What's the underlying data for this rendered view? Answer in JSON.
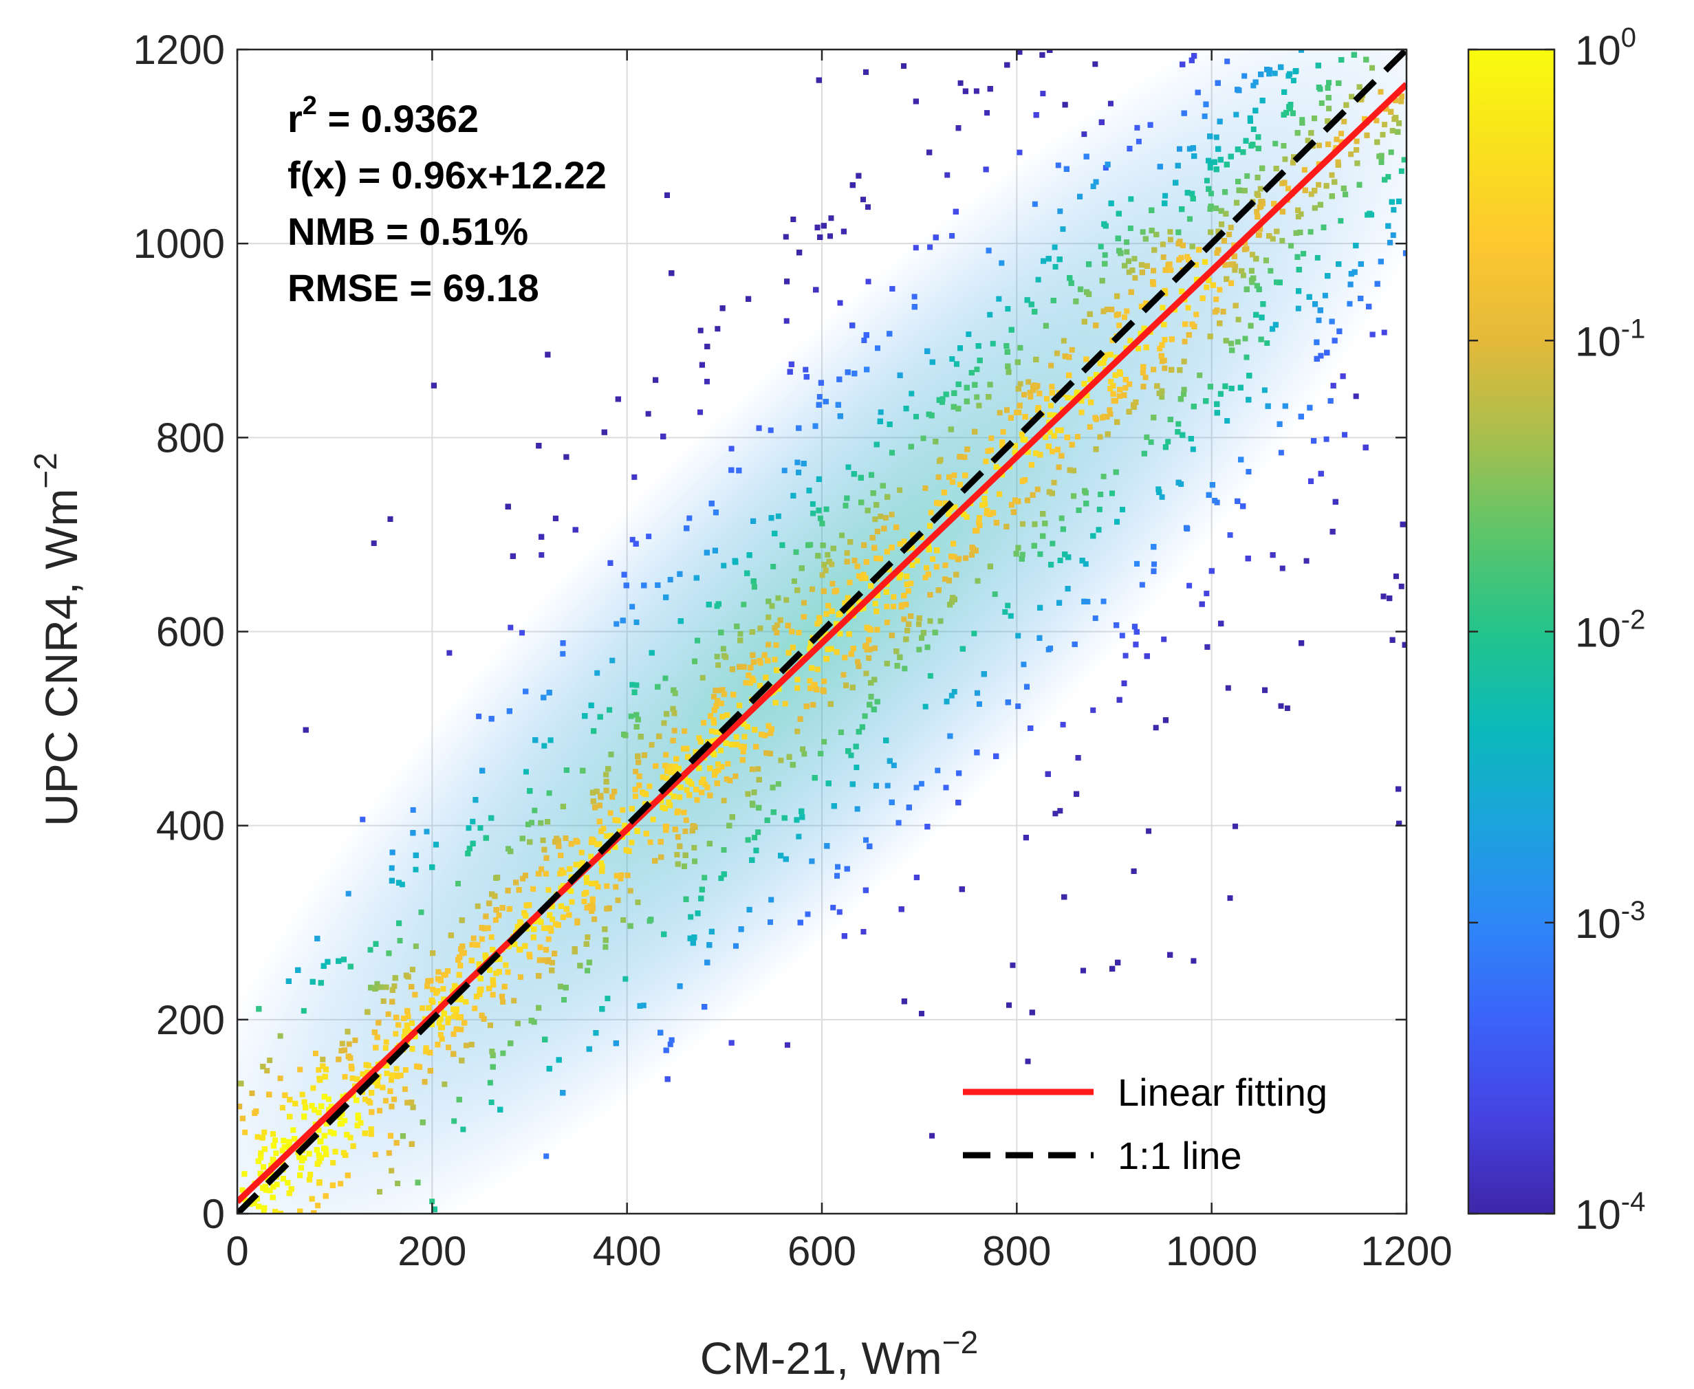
{
  "chart_data": {
    "type": "scatter",
    "subtype": "density scatter",
    "xlabel": "CM-21, Wm",
    "xlabel_exp": "−2",
    "ylabel": "UPC CNR4, Wm",
    "ylabel_exp": "−2",
    "xlim": [
      0,
      1200
    ],
    "ylim": [
      0,
      1200
    ],
    "xticks": [
      0,
      200,
      400,
      600,
      800,
      1000,
      1200
    ],
    "yticks": [
      0,
      200,
      400,
      600,
      800,
      1000,
      1200
    ],
    "xtick_labels": [
      "0",
      "200",
      "400",
      "600",
      "800",
      "1000",
      "1200"
    ],
    "ytick_labels": [
      "0",
      "200",
      "400",
      "600",
      "800",
      "1000",
      "1200"
    ],
    "grid": true,
    "annotations": {
      "r2_prefix": "r",
      "r2_sup": "2",
      "r2_value": " = 0.9362",
      "fit_equation": "f(x) = 0.96x+12.22",
      "nmb": "NMB = 0.51%",
      "rmse": "RMSE = 69.18"
    },
    "series": [
      {
        "name": "Linear fitting",
        "type": "line",
        "slope": 0.96,
        "intercept": 12.22,
        "x_range": [
          0,
          1200
        ],
        "color": "#ff1a1a",
        "style": "solid"
      },
      {
        "name": "1:1 line",
        "type": "line",
        "slope": 1,
        "intercept": 0,
        "x_range": [
          0,
          1200
        ],
        "color": "#000000",
        "style": "dashed"
      }
    ],
    "density_points": "dense cloud of several hundred thousand points around the 1:1 line, colored by relative density from 10^-4 (purple) to 10^0 (yellow); outliers spread roughly from 100 to 1200 on both axes",
    "legend": {
      "position": "bottom-right",
      "entries": [
        "Linear fitting",
        "1:1 line"
      ]
    },
    "colorbar": {
      "scale": "log",
      "range": [
        0.0001,
        1
      ],
      "ticks": [
        {
          "base": "10",
          "exp": "0",
          "value": 1
        },
        {
          "base": "10",
          "exp": "-1",
          "value": 0.1
        },
        {
          "base": "10",
          "exp": "-2",
          "value": 0.01
        },
        {
          "base": "10",
          "exp": "-3",
          "value": 0.001
        },
        {
          "base": "10",
          "exp": "-4",
          "value": 0.0001
        }
      ],
      "colormap": [
        "#3e26a8",
        "#4543e1",
        "#3b63f9",
        "#2e87f7",
        "#1ca3dd",
        "#0bb9ba",
        "#24c48c",
        "#5cc56a",
        "#a7bf4e",
        "#e4b93a",
        "#fdc830",
        "#f9e11d",
        "#f9fb0e"
      ]
    }
  }
}
